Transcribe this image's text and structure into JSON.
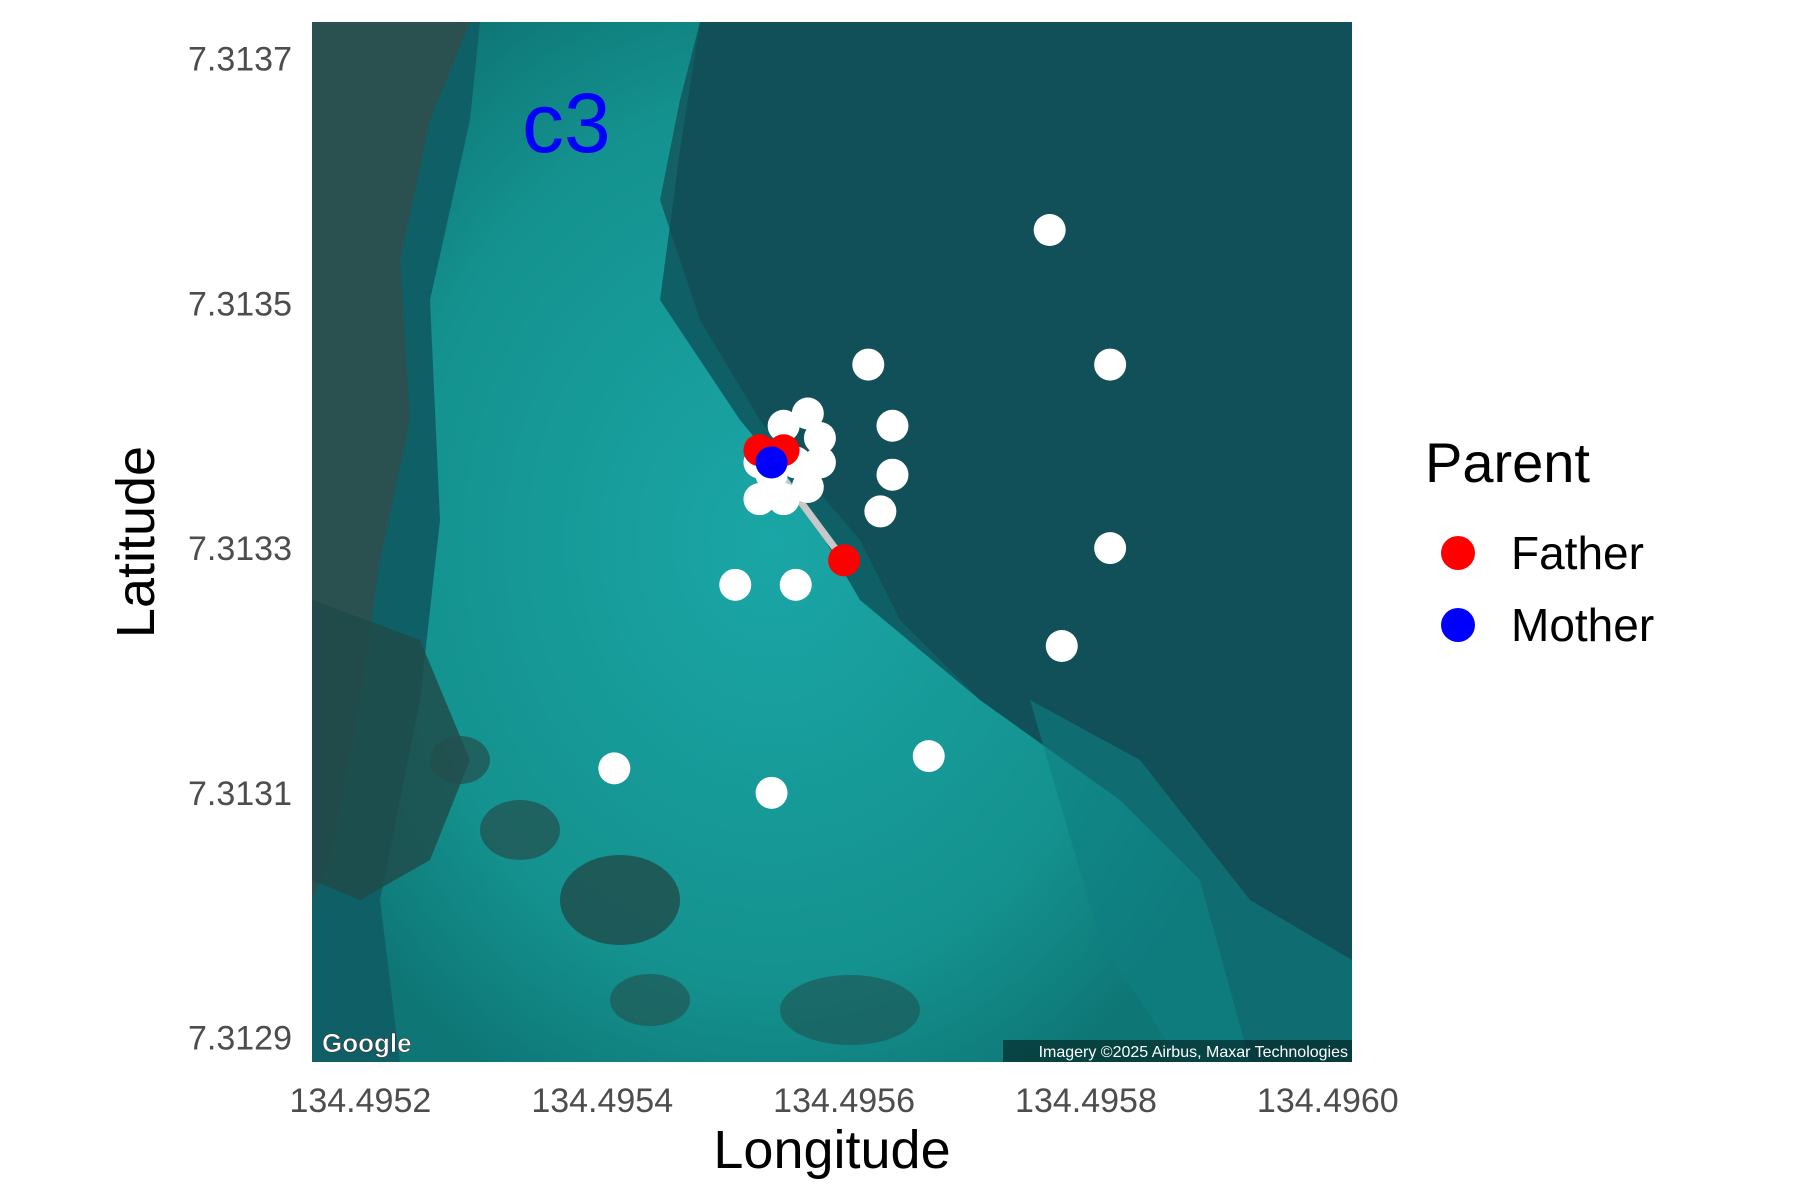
{
  "chart_data": {
    "type": "scatter",
    "panel_label": "c3",
    "xlabel": "Longitude",
    "ylabel": "Latitude",
    "xlim": [
      134.49516,
      134.49602
    ],
    "ylim": [
      7.31288,
      7.31373
    ],
    "x_ticks": [
      134.4952,
      134.4954,
      134.4956,
      134.4958,
      134.496
    ],
    "x_tick_labels": [
      "134.4952",
      "134.4954",
      "134.4956",
      "134.4958",
      "134.4960"
    ],
    "y_ticks": [
      7.3129,
      7.3131,
      7.3133,
      7.3135,
      7.3137
    ],
    "y_tick_labels": [
      "7.3129",
      "7.3131",
      "7.3133",
      "7.3135",
      "7.3137"
    ],
    "basemap": {
      "attribution": "Imagery ©2025 Airbus, Maxar Technologies",
      "logo_text": "Google"
    },
    "legend": {
      "title": "Parent",
      "placement": "right",
      "items": [
        {
          "label": "Father",
          "color": "#ff0000"
        },
        {
          "label": "Mother",
          "color": "#0000ff"
        }
      ]
    },
    "colors": {
      "offspring": "#ffffff",
      "link": "#c8c8c8"
    },
    "offspring_points": [
      [
        134.49577,
        7.31356
      ],
      [
        134.49562,
        7.31345
      ],
      [
        134.49582,
        7.31345
      ],
      [
        134.49557,
        7.31341
      ],
      [
        134.49564,
        7.3134
      ],
      [
        134.49555,
        7.3134
      ],
      [
        134.49558,
        7.31339
      ],
      [
        134.49556,
        7.31337
      ],
      [
        134.49553,
        7.31337
      ],
      [
        134.49558,
        7.31337
      ],
      [
        134.49564,
        7.31336
      ],
      [
        134.49554,
        7.31336
      ],
      [
        134.49557,
        7.31335
      ],
      [
        134.49553,
        7.31334
      ],
      [
        134.49555,
        7.31334
      ],
      [
        134.49563,
        7.31333
      ],
      [
        134.49582,
        7.3133
      ],
      [
        134.49551,
        7.31327
      ],
      [
        134.49556,
        7.31327
      ],
      [
        134.49578,
        7.31322
      ],
      [
        134.49541,
        7.31312
      ],
      [
        134.49567,
        7.31313
      ],
      [
        134.49554,
        7.3131
      ]
    ],
    "fathers": [
      [
        134.49553,
        7.31338
      ],
      [
        134.49555,
        7.31338
      ],
      [
        134.4956,
        7.31329
      ]
    ],
    "mother": [
      134.49554,
      7.31337
    ],
    "links": [
      {
        "from": [
          134.49554,
          7.31337
        ],
        "to": [
          134.4956,
          7.31329
        ]
      }
    ]
  }
}
